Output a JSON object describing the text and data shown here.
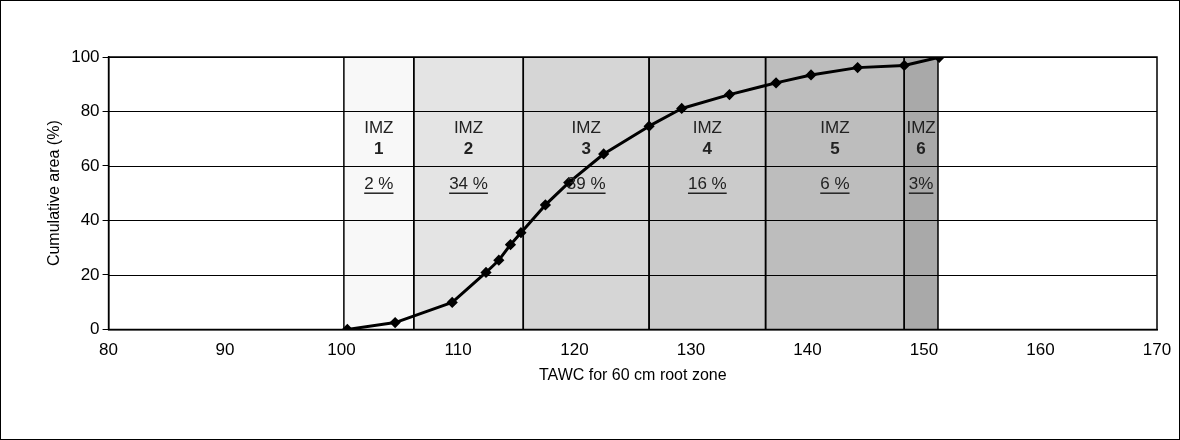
{
  "chart_data": {
    "type": "line",
    "xlabel": "TAWC for 60 cm root zone",
    "ylabel": "Cumulative area (%)",
    "x": [
      100.5,
      104.6,
      109.5,
      112.4,
      113.5,
      114.5,
      115.4,
      117.5,
      119.5,
      122.5,
      126.4,
      129.2,
      133.3,
      137.3,
      140.3,
      144.3,
      148.3,
      151.3
    ],
    "series": [
      {
        "color": "#000000",
        "values": [
          0,
          2.5,
          9.9,
          20.9,
          25.4,
          31.1,
          35.5,
          45.7,
          53.9,
          64.4,
          74.6,
          81.1,
          86.2,
          90.5,
          93.4,
          96.1,
          96.9,
          99.9
        ]
      }
    ],
    "xlim": [
      80,
      170
    ],
    "xticks": [
      80,
      90,
      100,
      110,
      120,
      130,
      140,
      150,
      160,
      170
    ],
    "ylim": [
      0,
      100
    ],
    "yticks": [
      0,
      20,
      40,
      60,
      80,
      100
    ],
    "grid": "y",
    "legend": false,
    "marker": "diamond",
    "line_style": "solid",
    "bands": [
      {
        "axis": "x",
        "from": 100.2,
        "to": 106.2,
        "label": "IMZ 1",
        "color": "#f8f8f8"
      },
      {
        "axis": "x",
        "from": 106.2,
        "to": 115.6,
        "label": "IMZ 2",
        "color": "#e4e4e4"
      },
      {
        "axis": "x",
        "from": 115.6,
        "to": 126.4,
        "label": "IMZ 3",
        "color": "#d6d6d6"
      },
      {
        "axis": "x",
        "from": 126.4,
        "to": 136.4,
        "label": "IMZ 4",
        "color": "#cbcbcb"
      },
      {
        "axis": "x",
        "from": 136.4,
        "to": 148.3,
        "label": "IMZ 5",
        "color": "#bdbdbd"
      },
      {
        "axis": "x",
        "from": 148.3,
        "to": 151.2,
        "label": "IMZ 6",
        "color": "#a9a9a9"
      }
    ],
    "annotations": [
      "2 %",
      "34 %",
      "39 %",
      "16 %",
      "6 %",
      "3%"
    ]
  }
}
